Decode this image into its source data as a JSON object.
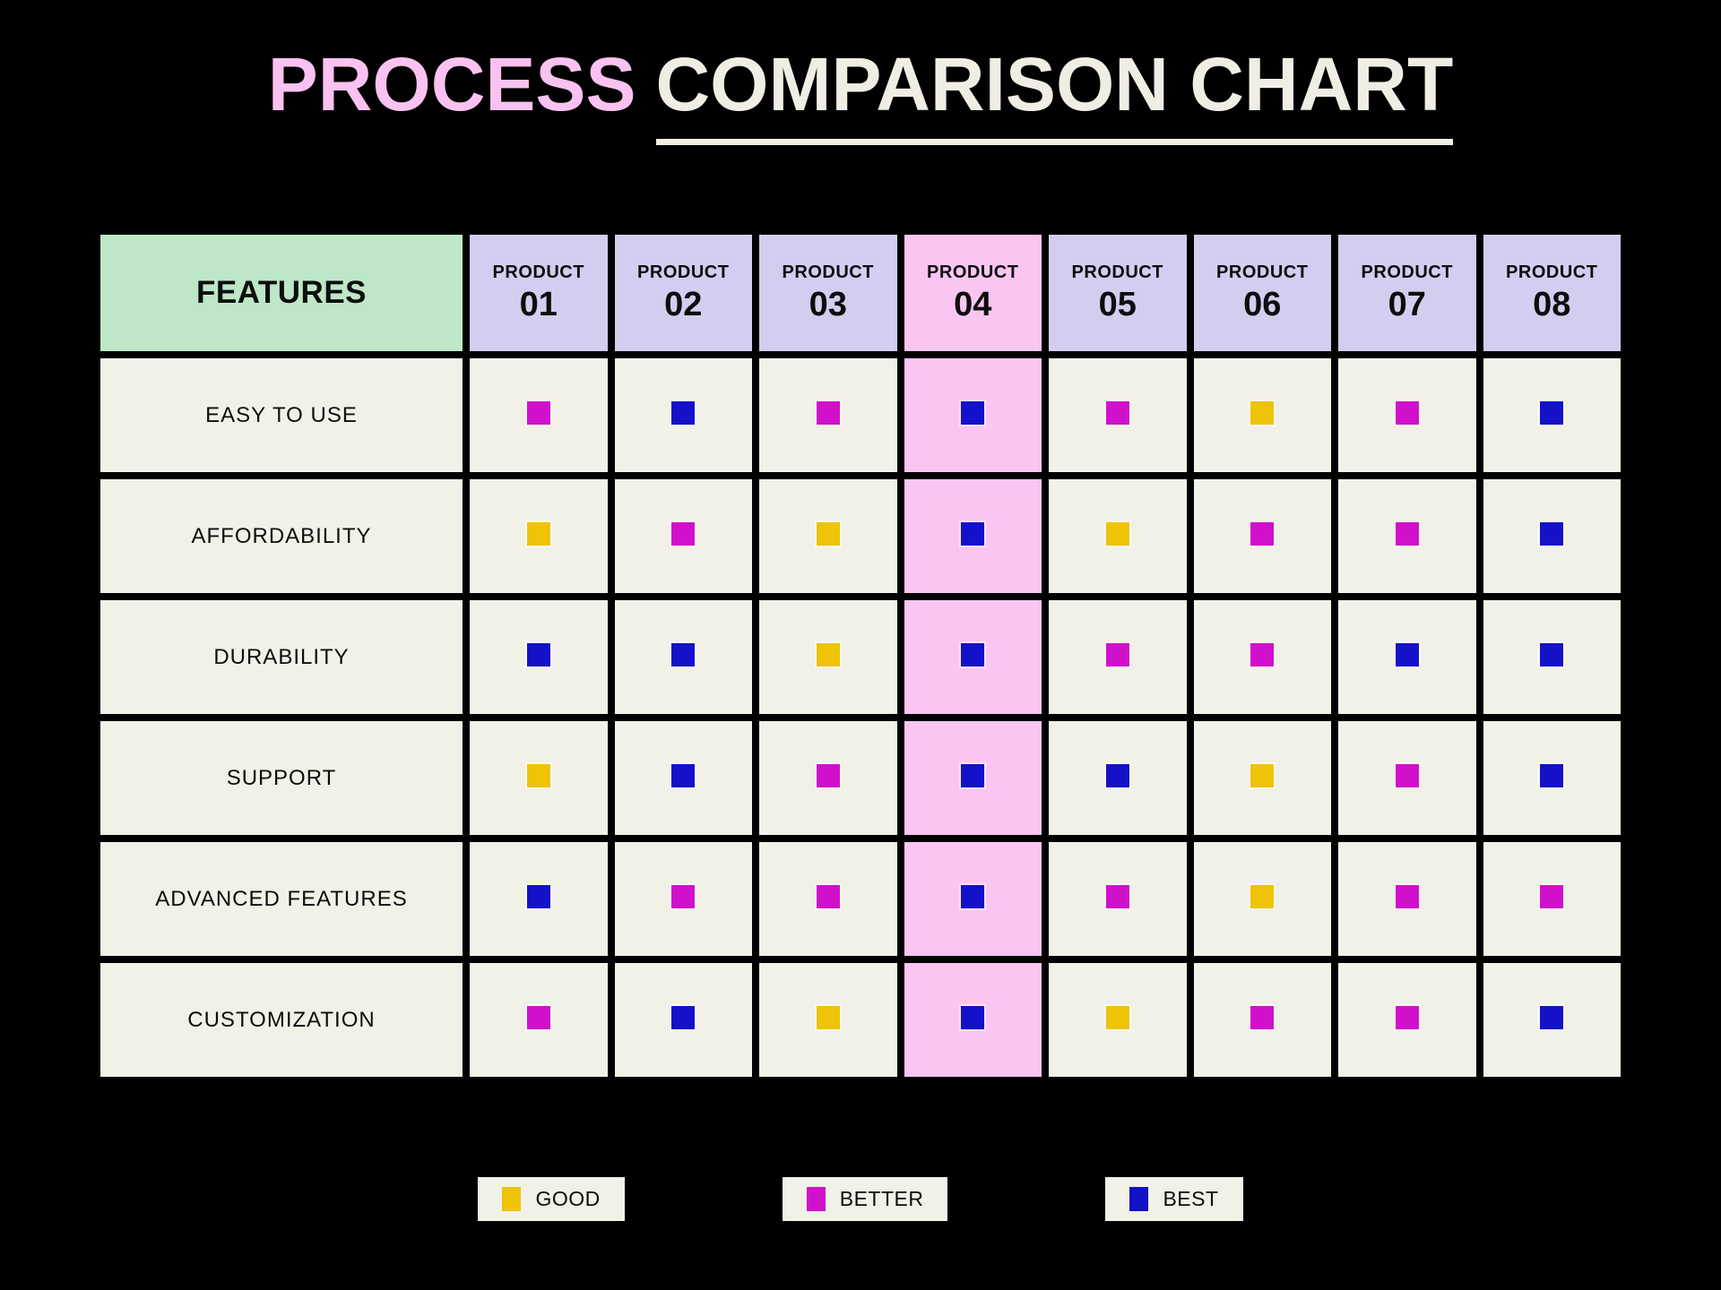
{
  "title": {
    "highlight": "PROCESS",
    "rest": "COMPARISON CHART"
  },
  "colors": {
    "pageBg": "#000000",
    "titleHighlight": "#F9C2F0",
    "titleRest": "#F0EEE4",
    "textDark": "#0D0D0D",
    "featuresBg": "#BDE7C6",
    "productBg": "#D3CDF0",
    "highlightBg": "#FBC5F2",
    "cellBg": "#F2F1E8",
    "good": "#EEC308",
    "better": "#D110CB",
    "best": "#1411C8"
  },
  "chart_data": {
    "type": "table",
    "title": "PROCESS COMPARISON CHART",
    "features_header": "FEATURES",
    "products": [
      {
        "label": "PRODUCT",
        "number": "01",
        "highlighted": false
      },
      {
        "label": "PRODUCT",
        "number": "02",
        "highlighted": false
      },
      {
        "label": "PRODUCT",
        "number": "03",
        "highlighted": false
      },
      {
        "label": "PRODUCT",
        "number": "04",
        "highlighted": true
      },
      {
        "label": "PRODUCT",
        "number": "05",
        "highlighted": false
      },
      {
        "label": "PRODUCT",
        "number": "06",
        "highlighted": false
      },
      {
        "label": "PRODUCT",
        "number": "07",
        "highlighted": false
      },
      {
        "label": "PRODUCT",
        "number": "08",
        "highlighted": false
      }
    ],
    "rows": [
      {
        "feature": "EASY TO USE",
        "ratings": [
          "better",
          "best",
          "better",
          "best",
          "better",
          "good",
          "better",
          "best"
        ]
      },
      {
        "feature": "AFFORDABILITY",
        "ratings": [
          "good",
          "better",
          "good",
          "best",
          "good",
          "better",
          "better",
          "best"
        ]
      },
      {
        "feature": "DURABILITY",
        "ratings": [
          "best",
          "best",
          "good",
          "best",
          "better",
          "better",
          "best",
          "best"
        ]
      },
      {
        "feature": "SUPPORT",
        "ratings": [
          "good",
          "best",
          "better",
          "best",
          "best",
          "good",
          "better",
          "best"
        ]
      },
      {
        "feature": "ADVANCED FEATURES",
        "ratings": [
          "best",
          "better",
          "better",
          "best",
          "better",
          "good",
          "better",
          "better"
        ]
      },
      {
        "feature": "CUSTOMIZATION",
        "ratings": [
          "better",
          "best",
          "good",
          "best",
          "good",
          "better",
          "better",
          "best"
        ]
      }
    ],
    "rating_levels": [
      {
        "id": "good",
        "label": "GOOD"
      },
      {
        "id": "better",
        "label": "BETTER"
      },
      {
        "id": "best",
        "label": "BEST"
      }
    ],
    "legend_position": "bottom-center"
  }
}
